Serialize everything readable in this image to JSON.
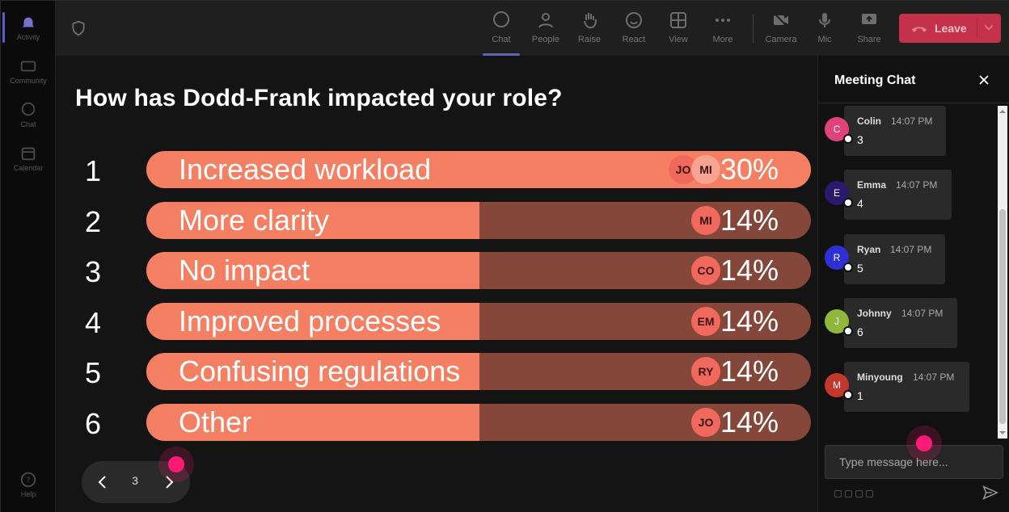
{
  "rail": {
    "items": [
      {
        "label": "Activity",
        "icon": "bell-icon"
      },
      {
        "label": "Community",
        "icon": "community-icon"
      },
      {
        "label": "Chat",
        "icon": "chat-icon"
      },
      {
        "label": "Calendar",
        "icon": "calendar-icon"
      }
    ],
    "help": {
      "label": "Help",
      "icon": "help-icon"
    }
  },
  "toolbar": {
    "chat": "Chat",
    "people": "People",
    "raise": "Raise",
    "react": "React",
    "view": "View",
    "more": "More",
    "camera": "Camera",
    "mic": "Mic",
    "share": "Share",
    "leave": "Leave"
  },
  "poll": {
    "question": "How has Dodd-Frank impacted your role?",
    "options": [
      {
        "num": "1",
        "label": "Increased workload",
        "pct_label": "30%",
        "fraction": 1.0,
        "voters": [
          "JO",
          "MI"
        ]
      },
      {
        "num": "2",
        "label": "More clarity",
        "pct_label": "14%",
        "fraction": 0.5,
        "voters": [
          "MI"
        ]
      },
      {
        "num": "3",
        "label": "No impact",
        "pct_label": "14%",
        "fraction": 0.5,
        "voters": [
          "CO"
        ]
      },
      {
        "num": "4",
        "label": "Improved processes",
        "pct_label": "14%",
        "fraction": 0.5,
        "voters": [
          "EM"
        ]
      },
      {
        "num": "5",
        "label": "Confusing regulations",
        "pct_label": "14%",
        "fraction": 0.5,
        "voters": [
          "RY"
        ]
      },
      {
        "num": "6",
        "label": "Other",
        "pct_label": "14%",
        "fraction": 0.5,
        "voters": [
          "JO"
        ]
      }
    ],
    "colors": {
      "bar_fill": "#f47f62",
      "bar_track": "#84473a"
    }
  },
  "pager": {
    "page": "3"
  },
  "chat": {
    "title": "Meeting Chat",
    "messages": [
      {
        "initial": "C",
        "name": "Colin",
        "time": "14:07 PM",
        "text": "3",
        "color": "#e0427a"
      },
      {
        "initial": "E",
        "name": "Emma",
        "time": "14:07 PM",
        "text": "4",
        "color": "#2b1a6b"
      },
      {
        "initial": "R",
        "name": "Ryan",
        "time": "14:07 PM",
        "text": "5",
        "color": "#2f2fd6"
      },
      {
        "initial": "J",
        "name": "Johnny",
        "time": "14:07 PM",
        "text": "6",
        "color": "#8fb83a"
      },
      {
        "initial": "M",
        "name": "Minyoung",
        "time": "14:07 PM",
        "text": "1",
        "color": "#c4372b"
      }
    ],
    "input_placeholder": "Type message here..."
  }
}
